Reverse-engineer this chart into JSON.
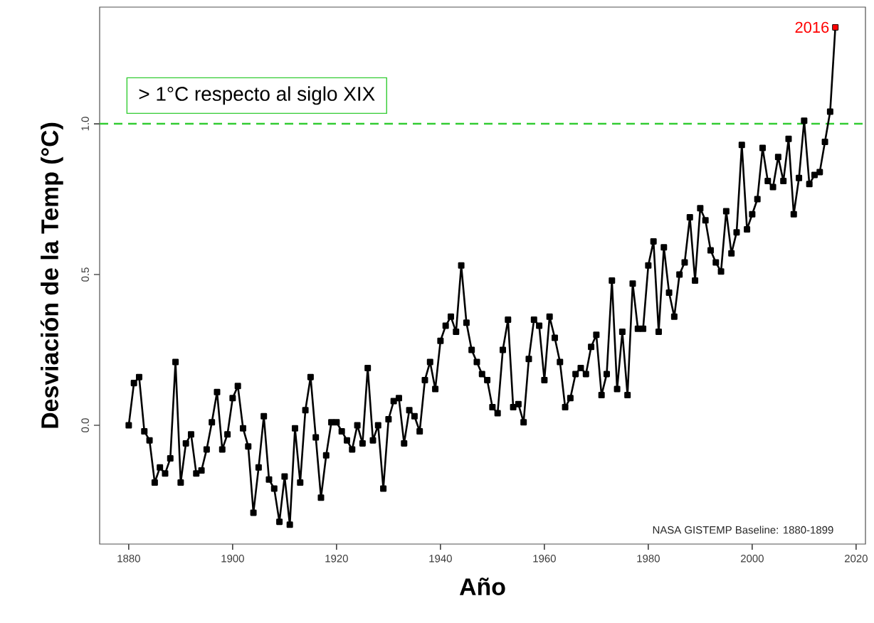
{
  "chart_data": {
    "type": "line",
    "xlabel": "Año",
    "ylabel": "Desviación de la Temp (°C)",
    "x": [
      1880,
      1881,
      1882,
      1883,
      1884,
      1885,
      1886,
      1887,
      1888,
      1889,
      1890,
      1891,
      1892,
      1893,
      1894,
      1895,
      1896,
      1897,
      1898,
      1899,
      1900,
      1901,
      1902,
      1903,
      1904,
      1905,
      1906,
      1907,
      1908,
      1909,
      1910,
      1911,
      1912,
      1913,
      1914,
      1915,
      1916,
      1917,
      1918,
      1919,
      1920,
      1921,
      1922,
      1923,
      1924,
      1925,
      1926,
      1927,
      1928,
      1929,
      1930,
      1931,
      1932,
      1933,
      1934,
      1935,
      1936,
      1937,
      1938,
      1939,
      1940,
      1941,
      1942,
      1943,
      1944,
      1945,
      1946,
      1947,
      1948,
      1949,
      1950,
      1951,
      1952,
      1953,
      1954,
      1955,
      1956,
      1957,
      1958,
      1959,
      1960,
      1961,
      1962,
      1963,
      1964,
      1965,
      1966,
      1967,
      1968,
      1969,
      1970,
      1971,
      1972,
      1973,
      1974,
      1975,
      1976,
      1977,
      1978,
      1979,
      1980,
      1981,
      1982,
      1983,
      1984,
      1985,
      1986,
      1987,
      1988,
      1989,
      1990,
      1991,
      1992,
      1993,
      1994,
      1995,
      1996,
      1997,
      1998,
      1999,
      2000,
      2001,
      2002,
      2003,
      2004,
      2005,
      2006,
      2007,
      2008,
      2009,
      2010,
      2011,
      2012,
      2013,
      2014,
      2015,
      2016
    ],
    "series": [
      {
        "color": "#000000",
        "values": [
          0.0,
          0.14,
          0.16,
          -0.02,
          -0.05,
          -0.19,
          -0.14,
          -0.16,
          -0.11,
          0.21,
          -0.19,
          -0.06,
          -0.03,
          -0.16,
          -0.15,
          -0.08,
          0.01,
          0.11,
          -0.08,
          -0.03,
          0.09,
          0.13,
          -0.01,
          -0.07,
          -0.29,
          -0.14,
          0.03,
          -0.18,
          -0.21,
          -0.32,
          -0.17,
          -0.33,
          -0.01,
          -0.19,
          0.05,
          0.16,
          -0.04,
          -0.24,
          -0.1,
          0.01,
          0.01,
          -0.02,
          -0.05,
          -0.08,
          0.0,
          -0.06,
          0.19,
          -0.05,
          0.0,
          -0.21,
          0.02,
          0.08,
          0.09,
          -0.06,
          0.05,
          0.03,
          -0.02,
          0.15,
          0.21,
          0.12,
          0.28,
          0.33,
          0.36,
          0.31,
          0.53,
          0.34,
          0.25,
          0.21,
          0.17,
          0.15,
          0.06,
          0.04,
          0.25,
          0.35,
          0.06,
          0.07,
          0.01,
          0.22,
          0.35,
          0.33,
          0.15,
          0.36,
          0.29,
          0.21,
          0.06,
          0.09,
          0.17,
          0.19,
          0.17,
          0.26,
          0.3,
          0.1,
          0.17,
          0.48,
          0.12,
          0.31,
          0.1,
          0.47,
          0.32,
          0.32,
          0.53,
          0.61,
          0.31,
          0.59,
          0.44,
          0.36,
          0.5,
          0.54,
          0.69,
          0.48,
          0.72,
          0.68,
          0.58,
          0.54,
          0.51,
          0.71,
          0.57,
          0.64,
          0.93,
          0.65,
          0.7,
          0.75,
          0.92,
          0.81,
          0.79,
          0.89,
          0.81,
          0.95,
          0.7,
          0.82,
          1.01,
          0.8,
          0.83,
          0.84,
          0.94,
          1.04,
          1.32
        ]
      },
      {
        "type": "scatter",
        "color": "#ff0000",
        "x": [
          2016
        ],
        "values": [
          1.32
        ]
      }
    ],
    "marker": "square",
    "xlim": [
      1874.4,
      2021.8
    ],
    "ylim": [
      -0.394,
      1.387
    ],
    "xticks": [
      1880,
      1900,
      1920,
      1940,
      1960,
      1980,
      2000,
      2020
    ],
    "yticks": [
      {
        "value": 0,
        "label": "0.0"
      },
      {
        "value": 0.5,
        "label": "0.5"
      },
      {
        "value": 1,
        "label": "1.0"
      }
    ],
    "ref_lines": [
      {
        "axis": "y",
        "value": 1,
        "label": "> 1°C respecto al siglo XIX",
        "color": "#33cc33",
        "line_style": "dashed"
      }
    ],
    "annotations": [
      {
        "text": "2016",
        "x": 2016,
        "y": 1.32
      },
      "NASA GISTEMP Baseline: 1880-1899"
    ]
  }
}
